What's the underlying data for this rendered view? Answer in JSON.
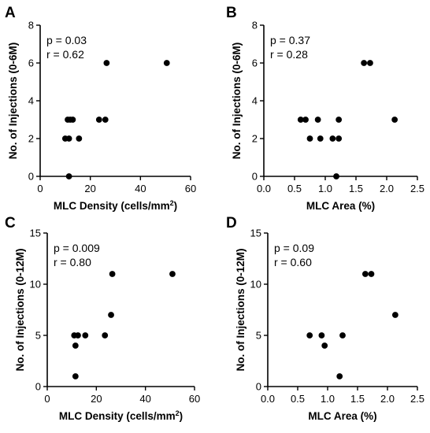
{
  "chart_data": [
    {
      "type": "scatter",
      "panel": "A",
      "xlabel": "MLC Density (cells/mm",
      "xlabel_sup": "2",
      "xlabel_tail": ")",
      "ylabel": "No. of Injections (0-6M)",
      "xlim": [
        0,
        60
      ],
      "ylim": [
        0,
        8
      ],
      "xticks": [
        0,
        20,
        40,
        60
      ],
      "yticks": [
        0,
        2,
        4,
        6,
        8
      ],
      "stats": [
        "p = 0.03",
        "r = 0.62"
      ],
      "points": [
        {
          "x": 10,
          "y": 2
        },
        {
          "x": 11.5,
          "y": 2
        },
        {
          "x": 11,
          "y": 3
        },
        {
          "x": 12,
          "y": 3
        },
        {
          "x": 13,
          "y": 3
        },
        {
          "x": 11.5,
          "y": 0
        },
        {
          "x": 15.5,
          "y": 2
        },
        {
          "x": 23.5,
          "y": 3
        },
        {
          "x": 26,
          "y": 3
        },
        {
          "x": 26.5,
          "y": 6
        },
        {
          "x": 50.5,
          "y": 6
        }
      ]
    },
    {
      "type": "scatter",
      "panel": "B",
      "xlabel": "MLC Area (%)",
      "ylabel": "No. of Injections (0-6M)",
      "xlim": [
        0,
        2.5
      ],
      "ylim": [
        0,
        8
      ],
      "xticks": [
        "0.0",
        "0.5",
        "1.0",
        "1.5",
        "2.0",
        "2.5"
      ],
      "yticks": [
        0,
        2,
        4,
        6,
        8
      ],
      "stats": [
        "p = 0.37",
        "r = 0.28"
      ],
      "points": [
        {
          "x": 0.6,
          "y": 3
        },
        {
          "x": 0.68,
          "y": 3
        },
        {
          "x": 0.88,
          "y": 3
        },
        {
          "x": 0.75,
          "y": 2
        },
        {
          "x": 0.92,
          "y": 2
        },
        {
          "x": 1.12,
          "y": 2
        },
        {
          "x": 1.22,
          "y": 2
        },
        {
          "x": 1.22,
          "y": 3
        },
        {
          "x": 1.18,
          "y": 0
        },
        {
          "x": 1.63,
          "y": 6
        },
        {
          "x": 1.73,
          "y": 6
        },
        {
          "x": 2.13,
          "y": 3
        }
      ]
    },
    {
      "type": "scatter",
      "panel": "C",
      "xlabel": "MLC Density (cells/mm",
      "xlabel_sup": "2",
      "xlabel_tail": ")",
      "ylabel": "No. of Injections (0-12M)",
      "xlim": [
        0,
        60
      ],
      "ylim": [
        0,
        15
      ],
      "xticks": [
        0,
        20,
        40,
        60
      ],
      "yticks": [
        0,
        5,
        10,
        15
      ],
      "stats": [
        "p = 0.009",
        "r = 0.80"
      ],
      "points": [
        {
          "x": 11,
          "y": 5
        },
        {
          "x": 12.5,
          "y": 5
        },
        {
          "x": 11.5,
          "y": 4
        },
        {
          "x": 15.5,
          "y": 5
        },
        {
          "x": 11.5,
          "y": 1
        },
        {
          "x": 23.5,
          "y": 5
        },
        {
          "x": 26,
          "y": 7
        },
        {
          "x": 26.5,
          "y": 11
        },
        {
          "x": 51,
          "y": 11
        }
      ]
    },
    {
      "type": "scatter",
      "panel": "D",
      "xlabel": "MLC Area (%)",
      "ylabel": "No. of Injections (0-12M)",
      "xlim": [
        0,
        2.5
      ],
      "ylim": [
        0,
        15
      ],
      "xticks": [
        "0.0",
        "0.5",
        "1.0",
        "1.5",
        "2.0",
        "2.5"
      ],
      "yticks": [
        0,
        5,
        10,
        15
      ],
      "stats": [
        "p = 0.09",
        "r = 0.60"
      ],
      "points": [
        {
          "x": 0.7,
          "y": 5
        },
        {
          "x": 0.9,
          "y": 5
        },
        {
          "x": 0.95,
          "y": 4
        },
        {
          "x": 1.25,
          "y": 5
        },
        {
          "x": 1.2,
          "y": 1
        },
        {
          "x": 1.63,
          "y": 11
        },
        {
          "x": 1.73,
          "y": 11
        },
        {
          "x": 2.13,
          "y": 7
        }
      ]
    }
  ]
}
